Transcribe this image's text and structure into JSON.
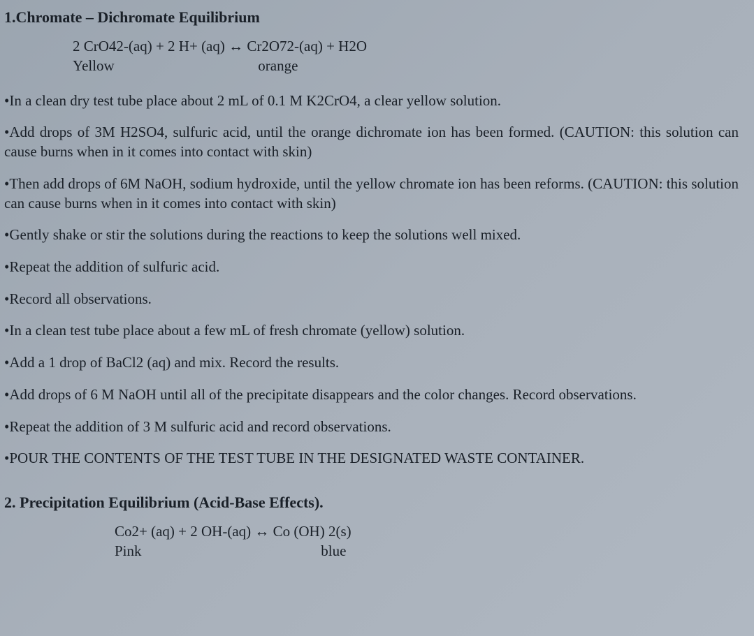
{
  "section1": {
    "title": "1.Chromate – Dichromate Equilibrium",
    "equation": "2 CrO42-(aq) + 2 H+ (aq) ↔ Cr2O72-(aq) + H2O",
    "label_left": "Yellow",
    "label_right": "orange",
    "steps": [
      "•In a clean dry test tube place about 2 mL of 0.1 M K2CrO4, a clear yellow solution.",
      "•Add drops of 3M H2SO4, sulfuric acid, until the orange dichromate ion has been formed.  (CAUTION: this solution can cause burns when in it comes into contact with skin)",
      "•Then add drops of 6M NaOH, sodium hydroxide, until the yellow chromate ion has been reforms. (CAUTION: this solution can cause burns when in it comes into contact with skin)",
      "•Gently shake or stir the solutions during the reactions to keep the solutions well mixed.",
      "•Repeat the addition of sulfuric acid.",
      "•Record all observations.",
      "•In a clean test tube place about a few mL of fresh chromate (yellow) solution.",
      "•Add a 1 drop of BaCl2 (aq) and mix.  Record the results.",
      "•Add drops of 6 M NaOH until all of the precipitate disappears and the color changes. Record observations.",
      "•Repeat the addition of 3 M sulfuric acid and record observations.",
      "•POUR THE CONTENTS OF THE TEST TUBE IN THE DESIGNATED WASTE CONTAINER."
    ]
  },
  "section2": {
    "title": "2. Precipitation Equilibrium (Acid-Base Effects).",
    "equation": "Co2+ (aq) + 2 OH-(aq) ↔ Co (OH) 2(s)",
    "label_left": "Pink",
    "label_right": "blue"
  },
  "colors": {
    "background": "#a6aeb8",
    "text": "#1a2028"
  }
}
